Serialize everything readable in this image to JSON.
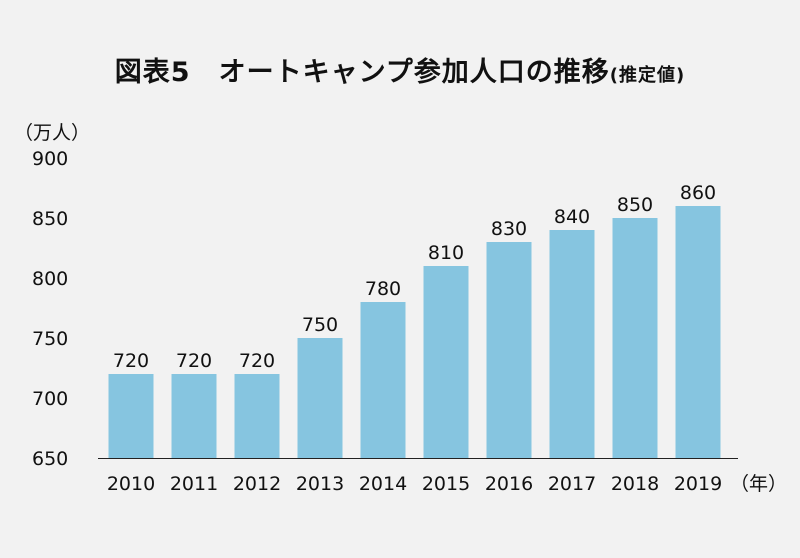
{
  "title": {
    "main": "図表5　オートキャンプ参加人口の推移",
    "sub": "(推定値)"
  },
  "chart_data": {
    "type": "bar",
    "title": "図表5　オートキャンプ参加人口の推移(推定値)",
    "ylabel": "（万人）",
    "xlabel": "（年）",
    "categories": [
      "2010",
      "2011",
      "2012",
      "2013",
      "2014",
      "2015",
      "2016",
      "2017",
      "2018",
      "2019"
    ],
    "values": [
      720,
      720,
      720,
      750,
      780,
      810,
      830,
      840,
      850,
      860
    ],
    "ylim": [
      650,
      900
    ],
    "yticks": [
      "900",
      "850",
      "800",
      "750",
      "700",
      "650"
    ],
    "bar_color": "#86c5e0",
    "grid": false,
    "data_labels": true
  }
}
